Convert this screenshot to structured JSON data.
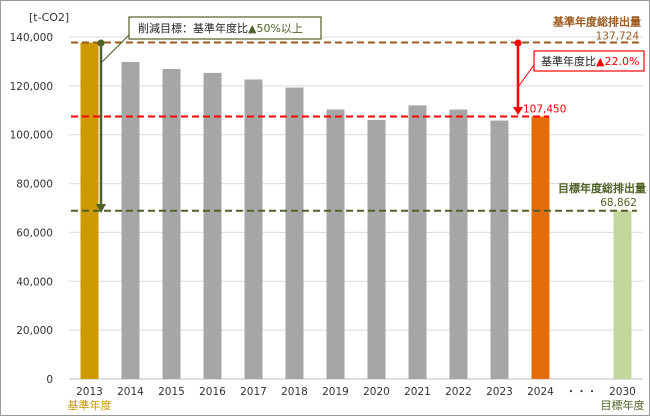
{
  "chart_data": {
    "type": "bar",
    "ylabel": "[t-CO2]",
    "ylim": [
      0,
      140000
    ],
    "yticks": [
      0,
      20000,
      40000,
      60000,
      80000,
      100000,
      120000,
      140000
    ],
    "ytick_labels": [
      "0",
      "20,000",
      "40,000",
      "60,000",
      "80,000",
      "100,000",
      "120,000",
      "140,000"
    ],
    "grid": true,
    "categories": [
      "2013",
      "2014",
      "2015",
      "2016",
      "2017",
      "2018",
      "2019",
      "2020",
      "2021",
      "2022",
      "2023",
      "2024",
      "・・・",
      "2030"
    ],
    "values": [
      137724,
      129800,
      126900,
      125300,
      122600,
      119300,
      110300,
      106000,
      112000,
      110300,
      105800,
      107450,
      null,
      68862
    ],
    "bar_colors": [
      "#cc9900",
      "#a6a6a6",
      "#a6a6a6",
      "#a6a6a6",
      "#a6a6a6",
      "#a6a6a6",
      "#a6a6a6",
      "#a6a6a6",
      "#a6a6a6",
      "#a6a6a6",
      "#a6a6a6",
      "#e46c0a",
      null,
      "#c3d69b"
    ],
    "sublabels": {
      "base": "基準年度",
      "target": "目標年度"
    },
    "reference_lines": [
      {
        "value": 137724,
        "color": "#9c5a1e",
        "label": "基準年度総排出量",
        "value_label": "137,724"
      },
      {
        "value": 107450,
        "color": "#ff0000",
        "label": "",
        "value_label": "107,450"
      },
      {
        "value": 68862,
        "color": "#4f6228",
        "label": "目標年度総排出量",
        "value_label": "68,862"
      }
    ],
    "annotations": {
      "target_callout": {
        "prefix": "削減目標：基準年度比",
        "value": "▲50%以上",
        "color": "#4f6228"
      },
      "current_callout": {
        "prefix": "基準年度比",
        "value": "▲22.0%",
        "color": "#ff0000"
      }
    }
  }
}
